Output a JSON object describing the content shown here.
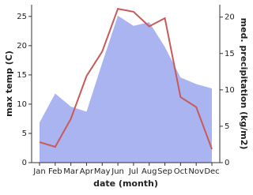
{
  "chart_data": {
    "type": "line-area",
    "x_label": "date (month)",
    "y_label": "max temp (C)",
    "y2_label": "med. precipitation (kg/m2)",
    "categories": [
      "Jan",
      "Feb",
      "Mar",
      "Apr",
      "May",
      "Jun",
      "Jul",
      "Aug",
      "Sep",
      "Oct",
      "Nov",
      "Dec"
    ],
    "series": [
      {
        "name": "max temp",
        "color": "#c85a5a",
        "axis": "y",
        "values": [
          3.5,
          2.7,
          7.5,
          14.8,
          19,
          26.3,
          25.8,
          23.3,
          24.7,
          11.2,
          9.5,
          2.3
        ]
      },
      {
        "name": "med. precipitation",
        "color": "#aab4f0",
        "axis": "y2",
        "values": [
          5.5,
          9.5,
          7.7,
          7,
          13.7,
          20.2,
          18.8,
          19.3,
          15.9,
          11.7,
          10.8,
          10.2
        ]
      }
    ],
    "ylim": [
      0,
      27
    ],
    "yticks": [
      0,
      5,
      10,
      15,
      20,
      25
    ],
    "y2lim": [
      0,
      21.7
    ],
    "y2ticks": [
      0,
      5,
      10,
      15,
      20
    ]
  }
}
